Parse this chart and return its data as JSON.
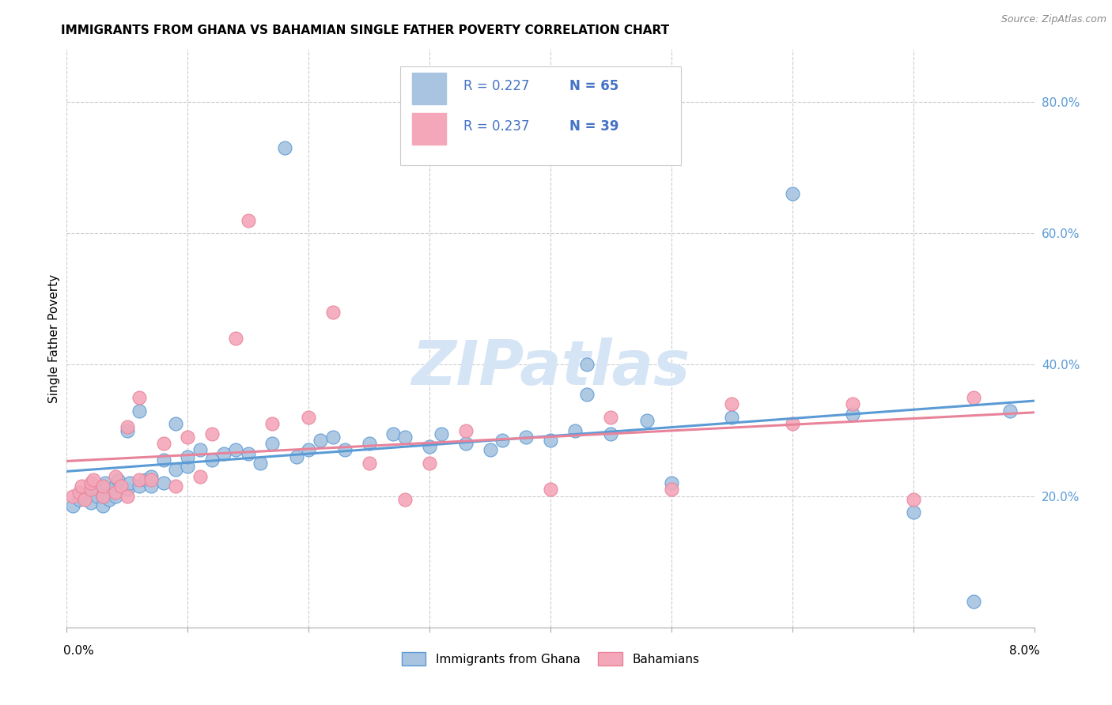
{
  "title": "IMMIGRANTS FROM GHANA VS BAHAMIAN SINGLE FATHER POVERTY CORRELATION CHART",
  "source": "Source: ZipAtlas.com",
  "ylabel": "Single Father Poverty",
  "xlim": [
    0.0,
    0.08
  ],
  "ylim": [
    0.0,
    0.88
  ],
  "ytick_vals": [
    0.2,
    0.4,
    0.6,
    0.8
  ],
  "ytick_labels": [
    "20.0%",
    "40.0%",
    "60.0%",
    "80.0%"
  ],
  "xtick_vals": [
    0.0,
    0.01,
    0.02,
    0.03,
    0.04,
    0.05,
    0.06,
    0.07,
    0.08
  ],
  "color_blue_fill": "#a8c4e0",
  "color_blue_edge": "#5b9bd5",
  "color_pink_fill": "#f4a7b9",
  "color_pink_edge": "#e8839a",
  "color_line_blue": "#5b9bd5",
  "color_line_pink": "#e8839a",
  "color_legend_text": "#4472c4",
  "color_ytick": "#5b9bd5",
  "watermark": "ZIPatlas",
  "watermark_color": "#d5e5f5",
  "label1": "Immigrants from Ghana",
  "label2": "Bahamians",
  "legend_r1": "R = 0.227",
  "legend_n1": "N = 65",
  "legend_r2": "R = 0.237",
  "legend_n2": "N = 39",
  "blue_x": [
    0.0005,
    0.001,
    0.0015,
    0.0018,
    0.002,
    0.002,
    0.0022,
    0.0025,
    0.003,
    0.003,
    0.003,
    0.0032,
    0.0035,
    0.004,
    0.004,
    0.0042,
    0.005,
    0.005,
    0.0052,
    0.006,
    0.006,
    0.0065,
    0.007,
    0.007,
    0.008,
    0.008,
    0.009,
    0.009,
    0.01,
    0.01,
    0.011,
    0.012,
    0.013,
    0.014,
    0.015,
    0.016,
    0.017,
    0.018,
    0.019,
    0.02,
    0.021,
    0.022,
    0.023,
    0.025,
    0.027,
    0.028,
    0.03,
    0.031,
    0.033,
    0.035,
    0.036,
    0.038,
    0.04,
    0.042,
    0.043,
    0.045,
    0.048,
    0.05,
    0.055,
    0.06,
    0.065,
    0.07,
    0.075,
    0.078,
    0.043
  ],
  "blue_y": [
    0.185,
    0.195,
    0.2,
    0.205,
    0.19,
    0.21,
    0.215,
    0.2,
    0.185,
    0.2,
    0.215,
    0.22,
    0.195,
    0.2,
    0.215,
    0.225,
    0.21,
    0.3,
    0.22,
    0.215,
    0.33,
    0.225,
    0.215,
    0.23,
    0.22,
    0.255,
    0.24,
    0.31,
    0.245,
    0.26,
    0.27,
    0.255,
    0.265,
    0.27,
    0.265,
    0.25,
    0.28,
    0.73,
    0.26,
    0.27,
    0.285,
    0.29,
    0.27,
    0.28,
    0.295,
    0.29,
    0.275,
    0.295,
    0.28,
    0.27,
    0.285,
    0.29,
    0.285,
    0.3,
    0.355,
    0.295,
    0.315,
    0.22,
    0.32,
    0.66,
    0.325,
    0.175,
    0.04,
    0.33,
    0.4
  ],
  "pink_x": [
    0.0005,
    0.001,
    0.0012,
    0.0015,
    0.002,
    0.002,
    0.0022,
    0.003,
    0.003,
    0.004,
    0.004,
    0.0045,
    0.005,
    0.005,
    0.006,
    0.006,
    0.007,
    0.008,
    0.009,
    0.01,
    0.011,
    0.012,
    0.014,
    0.015,
    0.017,
    0.02,
    0.022,
    0.025,
    0.028,
    0.03,
    0.033,
    0.04,
    0.045,
    0.05,
    0.055,
    0.06,
    0.065,
    0.07,
    0.075
  ],
  "pink_y": [
    0.2,
    0.205,
    0.215,
    0.195,
    0.21,
    0.22,
    0.225,
    0.2,
    0.215,
    0.205,
    0.23,
    0.215,
    0.2,
    0.305,
    0.225,
    0.35,
    0.225,
    0.28,
    0.215,
    0.29,
    0.23,
    0.295,
    0.44,
    0.62,
    0.31,
    0.32,
    0.48,
    0.25,
    0.195,
    0.25,
    0.3,
    0.21,
    0.32,
    0.21,
    0.34,
    0.31,
    0.34,
    0.195,
    0.35
  ]
}
